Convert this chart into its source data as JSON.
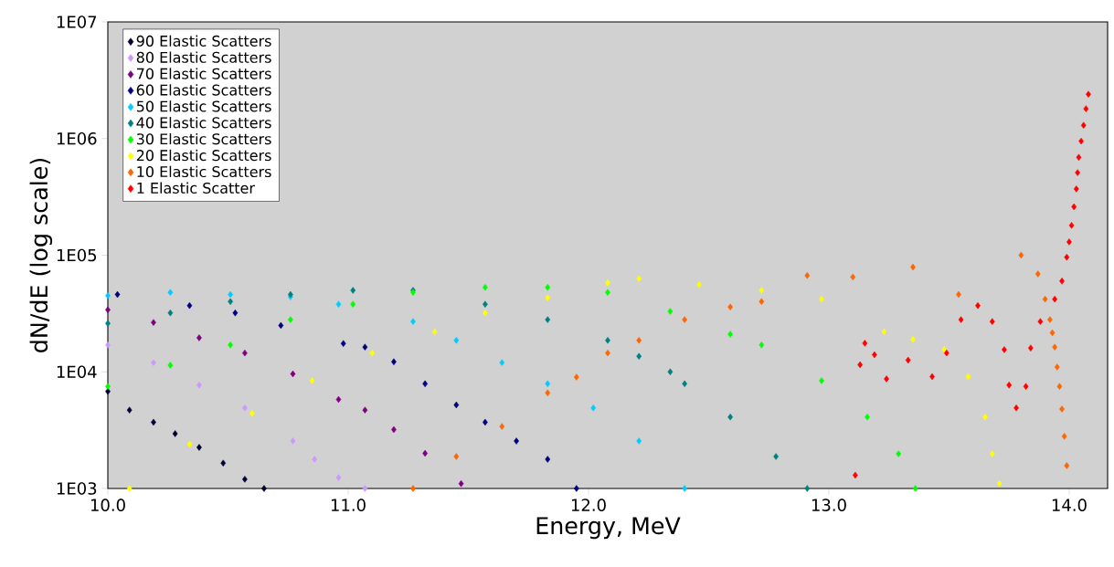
{
  "chart_data": {
    "type": "scatter",
    "xlabel": "Energy, MeV",
    "ylabel": "dN/dE (log scale)",
    "log": "y",
    "marker": "diamond",
    "legend": "top left",
    "xlim": [
      10.0,
      14.16
    ],
    "ylim": [
      1000,
      10000000
    ],
    "xticks": [
      {
        "value": 10,
        "label": "10.0"
      },
      {
        "value": 11,
        "label": "11.0"
      },
      {
        "value": 12,
        "label": "12.0"
      },
      {
        "value": 13,
        "label": "13.0"
      },
      {
        "value": 14,
        "label": "14.0"
      }
    ],
    "yticks": [
      {
        "value": 1000,
        "label": "1E03"
      },
      {
        "value": 10000,
        "label": "1E04"
      },
      {
        "value": 100000,
        "label": "1E05"
      },
      {
        "value": 1000000,
        "label": "1E06"
      },
      {
        "value": 10000000,
        "label": "1E07"
      }
    ],
    "series": [
      {
        "name": "90 Elastic Scatters",
        "color": "#000033",
        "x": [
          10.0,
          10.09,
          10.19,
          10.28,
          10.38,
          10.48,
          10.57,
          10.65
        ],
        "values": [
          6800,
          4700,
          3700,
          2950,
          2250,
          1650,
          1200,
          1000
        ]
      },
      {
        "name": "80 Elastic Scatters",
        "color": "#cc99ff",
        "x": [
          10.0,
          10.19,
          10.38,
          10.57,
          10.77,
          10.86,
          10.96,
          11.07
        ],
        "values": [
          17000,
          12000,
          7700,
          4900,
          2550,
          1780,
          1240,
          1000
        ]
      },
      {
        "name": "70 Elastic Scatters",
        "color": "#800080",
        "x": [
          10.0,
          10.19,
          10.38,
          10.57,
          10.77,
          10.96,
          11.07,
          11.19,
          11.32,
          11.47
        ],
        "values": [
          34000,
          26500,
          19600,
          14500,
          9600,
          5800,
          4700,
          3200,
          2000,
          1100
        ]
      },
      {
        "name": "60 Elastic Scatters",
        "color": "#000080",
        "x": [
          10.04,
          10.34,
          10.53,
          10.72,
          10.98,
          11.07,
          11.19,
          11.32,
          11.45,
          11.57,
          11.7,
          11.83,
          11.95
        ],
        "values": [
          46000,
          37000,
          32000,
          25000,
          17500,
          16300,
          12200,
          7900,
          5200,
          3700,
          2550,
          1780,
          1000
        ]
      },
      {
        "name": "50 Elastic Scatters",
        "color": "#00ccff",
        "x": [
          10.0,
          10.26,
          10.51,
          10.76,
          10.96,
          11.27,
          11.45,
          11.64,
          11.83,
          12.02,
          12.21,
          12.4
        ],
        "values": [
          45000,
          48000,
          46000,
          44000,
          38000,
          27000,
          18600,
          12000,
          7900,
          4900,
          2550,
          1000
        ]
      },
      {
        "name": "40 Elastic Scatters",
        "color": "#008080",
        "x": [
          10.0,
          10.26,
          10.51,
          10.76,
          11.02,
          11.27,
          11.57,
          11.83,
          12.08,
          12.21,
          12.34,
          12.4,
          12.59,
          12.78,
          12.91
        ],
        "values": [
          26000,
          32000,
          40000,
          46000,
          50000,
          50000,
          38000,
          28000,
          18600,
          13600,
          10000,
          7900,
          4100,
          1880,
          1000
        ]
      },
      {
        "name": "30 Elastic Scatters",
        "color": "#00ff00",
        "x": [
          10.0,
          10.26,
          10.51,
          10.76,
          11.02,
          11.27,
          11.57,
          11.83,
          12.08,
          12.34,
          12.59,
          12.72,
          12.97,
          13.16,
          13.29,
          13.36
        ],
        "values": [
          7500,
          11400,
          17000,
          28000,
          38000,
          48000,
          53000,
          53000,
          48000,
          33000,
          21000,
          17000,
          8400,
          4100,
          1980,
          1000
        ]
      },
      {
        "name": "20 Elastic Scatters",
        "color": "#ffff00",
        "x": [
          10.09,
          10.34,
          10.6,
          10.85,
          11.1,
          11.36,
          11.57,
          11.83,
          12.08,
          12.21,
          12.46,
          12.72,
          12.97,
          13.23,
          13.35,
          13.48,
          13.58,
          13.65,
          13.68,
          13.71
        ],
        "values": [
          1000,
          2400,
          4400,
          8400,
          14500,
          22000,
          32000,
          43000,
          58000,
          63000,
          56000,
          50000,
          42000,
          22000,
          19000,
          15500,
          9100,
          4100,
          1980,
          1100
        ]
      },
      {
        "name": "10 Elastic Scatters",
        "color": "#ff6600",
        "x": [
          11.27,
          11.45,
          11.64,
          11.83,
          11.95,
          12.08,
          12.21,
          12.4,
          12.59,
          12.72,
          12.91,
          13.1,
          13.35,
          13.54,
          13.8,
          13.87,
          13.9,
          13.92,
          13.93,
          13.94,
          13.95,
          13.96,
          13.97,
          13.98,
          13.99
        ],
        "values": [
          1000,
          1880,
          3400,
          6600,
          9000,
          14500,
          18600,
          28000,
          36000,
          40000,
          67000,
          65000,
          79000,
          46000,
          100000,
          69000,
          42000,
          28000,
          21600,
          16300,
          11000,
          7500,
          4800,
          2800,
          1570
        ]
      },
      {
        "name": "1 Elastic Scatter",
        "color": "#ff0000",
        "x": [
          13.11,
          13.13,
          13.15,
          13.19,
          13.24,
          13.33,
          13.43,
          13.49,
          13.55,
          13.62,
          13.68,
          13.73,
          13.75,
          13.78,
          13.82,
          13.84,
          13.88,
          13.94,
          13.97,
          13.99,
          14.0,
          14.01,
          14.02,
          14.03,
          14.035,
          14.04,
          14.05,
          14.06,
          14.07,
          14.08
        ],
        "values": [
          1300,
          11500,
          17600,
          14000,
          8700,
          12600,
          9100,
          14500,
          28000,
          37000,
          27000,
          15500,
          7700,
          4900,
          7500,
          16000,
          27000,
          42000,
          60000,
          96000,
          130000,
          180000,
          260000,
          370000,
          510000,
          690000,
          950000,
          1300000,
          1800000,
          2400000
        ]
      }
    ]
  }
}
